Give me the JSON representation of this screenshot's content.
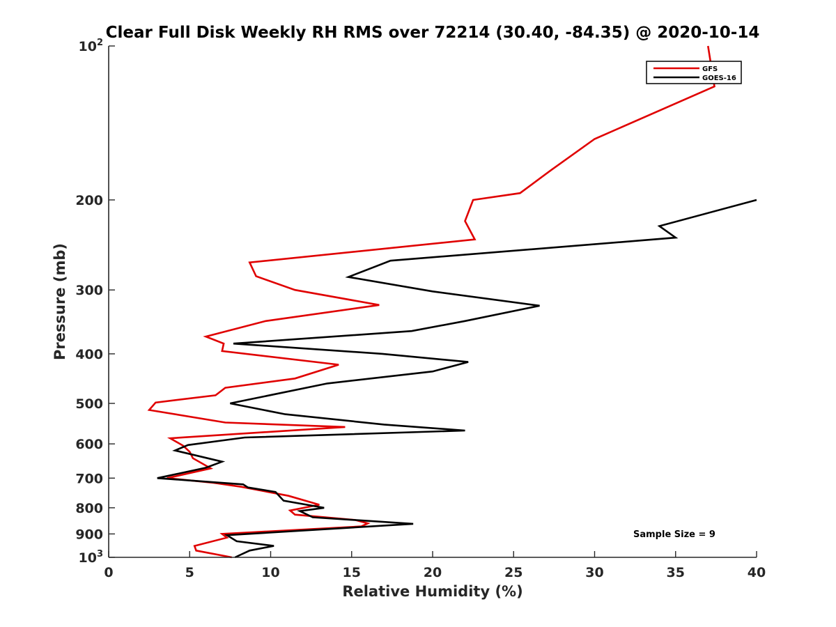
{
  "chart_data": {
    "type": "line",
    "title": "Clear Full Disk Weekly RH RMS over 72214 (30.40, -84.35) @ 2020-10-14",
    "xlabel": "Relative Humidity (%)",
    "ylabel": "Pressure (mb)",
    "xlim": [
      0,
      40
    ],
    "ylim": [
      100,
      1000
    ],
    "yscale": "log",
    "y_reversed": true,
    "x_ticks": [
      0,
      5,
      10,
      15,
      20,
      25,
      30,
      35,
      40
    ],
    "y_ticks": [
      {
        "value": 100,
        "label": "10",
        "sup": "2"
      },
      {
        "value": 200,
        "label": "200",
        "sup": ""
      },
      {
        "value": 300,
        "label": "300",
        "sup": ""
      },
      {
        "value": 400,
        "label": "400",
        "sup": ""
      },
      {
        "value": 500,
        "label": "500",
        "sup": ""
      },
      {
        "value": 600,
        "label": "600",
        "sup": ""
      },
      {
        "value": 700,
        "label": "700",
        "sup": ""
      },
      {
        "value": 800,
        "label": "800",
        "sup": ""
      },
      {
        "value": 900,
        "label": "900",
        "sup": ""
      },
      {
        "value": 1000,
        "label": "10",
        "sup": "3"
      }
    ],
    "legend_position": "top-right",
    "annotation": "Sample Size = 9",
    "series": [
      {
        "name": "GFS",
        "color": "#e00000",
        "points": [
          [
            37.0,
            100
          ],
          [
            37.4,
            120
          ],
          [
            30.0,
            152
          ],
          [
            27.3,
            175
          ],
          [
            25.4,
            194
          ],
          [
            22.5,
            200
          ],
          [
            22.0,
            220
          ],
          [
            22.6,
            239
          ],
          [
            8.7,
            265
          ],
          [
            9.1,
            282
          ],
          [
            11.5,
            300
          ],
          [
            16.7,
            321
          ],
          [
            9.7,
            345
          ],
          [
            6.0,
            370
          ],
          [
            7.1,
            382
          ],
          [
            7.0,
            395
          ],
          [
            14.2,
            420
          ],
          [
            11.5,
            447
          ],
          [
            7.2,
            466
          ],
          [
            6.6,
            482
          ],
          [
            2.9,
            498
          ],
          [
            2.5,
            515
          ],
          [
            7.2,
            545
          ],
          [
            14.6,
            556
          ],
          [
            3.8,
            585
          ],
          [
            4.6,
            605
          ],
          [
            5.0,
            622
          ],
          [
            5.2,
            640
          ],
          [
            6.3,
            670
          ],
          [
            3.6,
            700
          ],
          [
            6.5,
            715
          ],
          [
            8.2,
            728
          ],
          [
            11.1,
            758
          ],
          [
            13.0,
            789
          ],
          [
            11.2,
            810
          ],
          [
            11.5,
            825
          ],
          [
            15.2,
            845
          ],
          [
            16.0,
            858
          ],
          [
            15.6,
            870
          ],
          [
            7.0,
            900
          ],
          [
            7.3,
            915
          ],
          [
            5.3,
            950
          ],
          [
            5.4,
            970
          ],
          [
            7.6,
            1000
          ]
        ]
      },
      {
        "name": "GOES-16",
        "color": "#000000",
        "points": [
          [
            40.0,
            200
          ],
          [
            34.0,
            225
          ],
          [
            35.0,
            237
          ],
          [
            17.4,
            263
          ],
          [
            14.8,
            283
          ],
          [
            20.0,
            302
          ],
          [
            26.6,
            322
          ],
          [
            22.0,
            345
          ],
          [
            18.7,
            361
          ],
          [
            7.7,
            382
          ],
          [
            16.9,
            400
          ],
          [
            22.2,
            415
          ],
          [
            20.0,
            433
          ],
          [
            13.5,
            457
          ],
          [
            7.5,
            500
          ],
          [
            10.9,
            525
          ],
          [
            17.0,
            550
          ],
          [
            22.0,
            565
          ],
          [
            8.4,
            583
          ],
          [
            4.9,
            603
          ],
          [
            4.1,
            618
          ],
          [
            7.0,
            650
          ],
          [
            6.0,
            668
          ],
          [
            3.0,
            700
          ],
          [
            8.3,
            720
          ],
          [
            8.6,
            730
          ],
          [
            10.3,
            745
          ],
          [
            10.8,
            775
          ],
          [
            13.3,
            800
          ],
          [
            11.8,
            812
          ],
          [
            12.6,
            835
          ],
          [
            18.8,
            860
          ],
          [
            7.3,
            905
          ],
          [
            7.9,
            930
          ],
          [
            10.2,
            950
          ],
          [
            8.7,
            970
          ],
          [
            7.8,
            1000
          ]
        ]
      }
    ]
  }
}
